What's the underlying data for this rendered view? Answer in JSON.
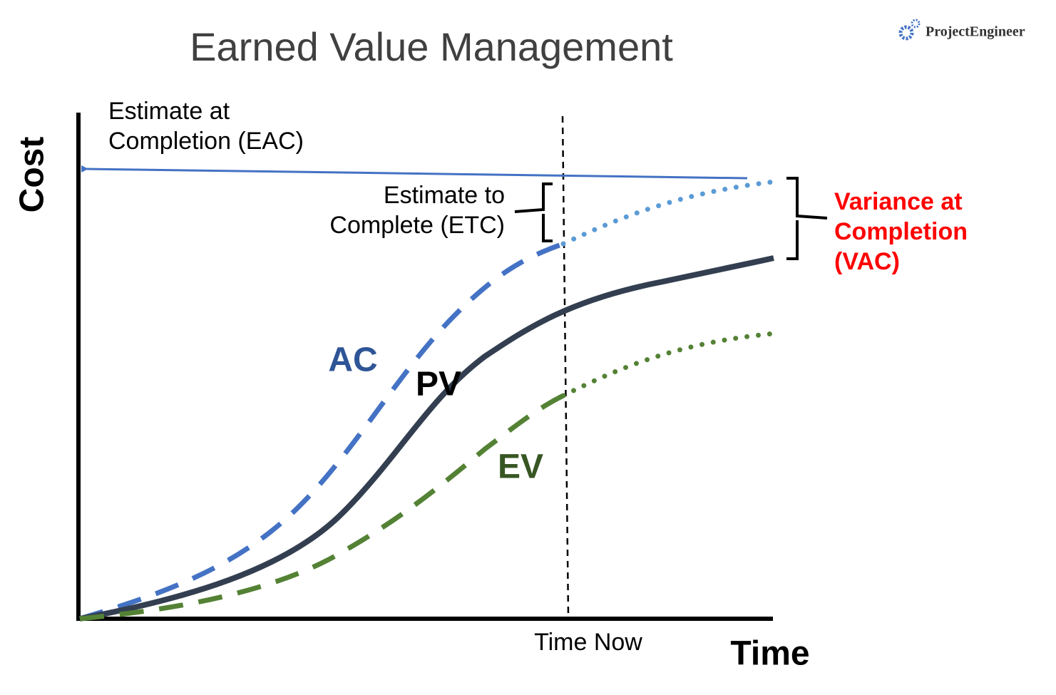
{
  "title": "Earned Value Management",
  "logo": "ProjectEngineer",
  "axes": {
    "y_label": "Cost",
    "x_label": "Time"
  },
  "time_now": "Time Now",
  "curves": {
    "ac": "AC",
    "pv": "PV",
    "ev": "EV"
  },
  "eac": {
    "lines": [
      "Estimate at",
      "Completion (EAC)"
    ]
  },
  "etc": {
    "lines": [
      "Estimate to",
      "Complete (ETC)"
    ]
  },
  "vac": {
    "lines": [
      "Variance at",
      "Completion",
      "(VAC)"
    ]
  }
}
